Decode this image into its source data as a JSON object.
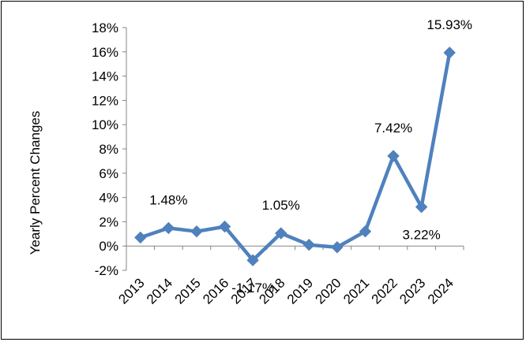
{
  "chart_data": {
    "type": "line",
    "title": "",
    "xlabel": "",
    "ylabel": "Yearly Percent Changes",
    "ylim": [
      -2,
      18
    ],
    "y_tick_step": 2,
    "y_tick_format": "percent",
    "grid": false,
    "legend": "none",
    "series_color": "#4f81bd",
    "categories": [
      "2013",
      "2014",
      "2015",
      "2016",
      "2017",
      "2018",
      "2019",
      "2020",
      "2021",
      "2022",
      "2023",
      "2024"
    ],
    "series": [
      {
        "values": [
          0.7,
          1.48,
          1.2,
          1.6,
          -1.17,
          1.05,
          0.1,
          -0.1,
          1.2,
          7.42,
          3.22,
          15.93
        ]
      }
    ],
    "data_labels": [
      {
        "index": 1,
        "text": "1.48%",
        "position": "above"
      },
      {
        "index": 4,
        "text": "-1.17%",
        "position": "below"
      },
      {
        "index": 5,
        "text": "1.05%",
        "position": "above"
      },
      {
        "index": 9,
        "text": "7.42%",
        "position": "above"
      },
      {
        "index": 10,
        "text": "3.22%",
        "position": "below"
      },
      {
        "index": 11,
        "text": "15.93%",
        "position": "above"
      }
    ]
  }
}
